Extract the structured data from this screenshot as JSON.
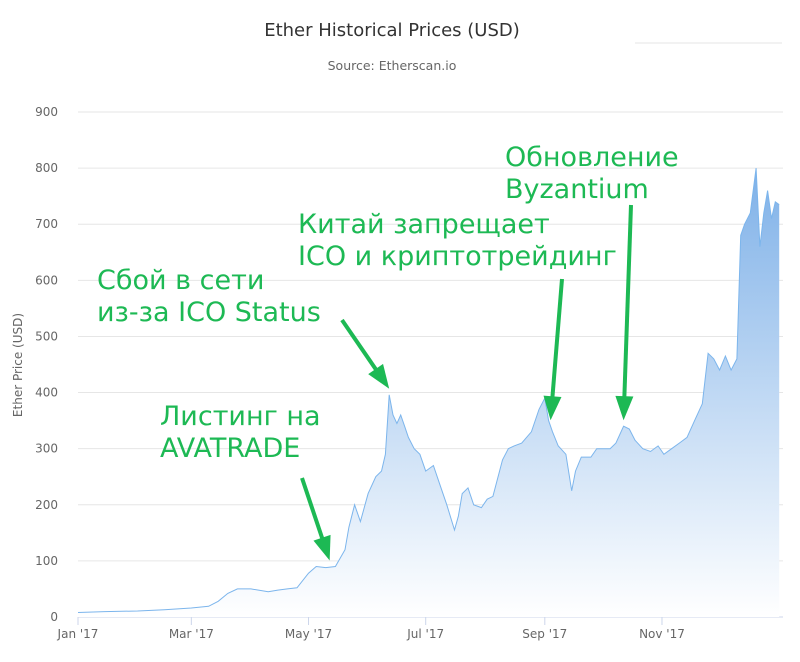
{
  "chart_data": {
    "type": "area",
    "title": "Ether Historical Prices (USD)",
    "subtitle": "Source: Etherscan.io",
    "xlabel": "",
    "ylabel": "Ether Price (USD)",
    "ylim": [
      0,
      900
    ],
    "yticks": [
      0,
      100,
      200,
      300,
      400,
      500,
      600,
      700,
      800,
      900
    ],
    "xticks": [
      {
        "label": "Jan '17",
        "date": "2017-01-01"
      },
      {
        "label": "Mar '17",
        "date": "2017-03-01"
      },
      {
        "label": "May '17",
        "date": "2017-05-01"
      },
      {
        "label": "Jul '17",
        "date": "2017-07-01"
      },
      {
        "label": "Sep '17",
        "date": "2017-09-01"
      },
      {
        "label": "Nov '17",
        "date": "2017-11-01"
      }
    ],
    "xrange": [
      "2017-01-01",
      "2018-01-03"
    ],
    "grid": true,
    "legend": "none",
    "colors": {
      "line": "#7cb5ec",
      "fill_top": "#7fb1e8",
      "fill_bottom": "#ffffff",
      "annotation": "#1db954"
    },
    "series": [
      {
        "values": [
          [
            "2017-01-01",
            8
          ],
          [
            "2017-01-15",
            9.6
          ],
          [
            "2017-02-01",
            10.7
          ],
          [
            "2017-02-15",
            12.8
          ],
          [
            "2017-03-01",
            16
          ],
          [
            "2017-03-10",
            19
          ],
          [
            "2017-03-15",
            28
          ],
          [
            "2017-03-20",
            42
          ],
          [
            "2017-03-25",
            50
          ],
          [
            "2017-04-01",
            50
          ],
          [
            "2017-04-10",
            45
          ],
          [
            "2017-04-15",
            48
          ],
          [
            "2017-04-20",
            50
          ],
          [
            "2017-04-25",
            52
          ],
          [
            "2017-05-01",
            78
          ],
          [
            "2017-05-05",
            90
          ],
          [
            "2017-05-10",
            88
          ],
          [
            "2017-05-15",
            90
          ],
          [
            "2017-05-20",
            120
          ],
          [
            "2017-05-22",
            160
          ],
          [
            "2017-05-25",
            200
          ],
          [
            "2017-05-28",
            170
          ],
          [
            "2017-06-01",
            220
          ],
          [
            "2017-06-05",
            250
          ],
          [
            "2017-06-08",
            260
          ],
          [
            "2017-06-10",
            290
          ],
          [
            "2017-06-12",
            396
          ],
          [
            "2017-06-14",
            360
          ],
          [
            "2017-06-16",
            345
          ],
          [
            "2017-06-18",
            360
          ],
          [
            "2017-06-20",
            340
          ],
          [
            "2017-06-22",
            320
          ],
          [
            "2017-06-25",
            300
          ],
          [
            "2017-06-28",
            290
          ],
          [
            "2017-07-01",
            260
          ],
          [
            "2017-07-05",
            270
          ],
          [
            "2017-07-08",
            240
          ],
          [
            "2017-07-12",
            200
          ],
          [
            "2017-07-16",
            155
          ],
          [
            "2017-07-18",
            180
          ],
          [
            "2017-07-20",
            220
          ],
          [
            "2017-07-23",
            230
          ],
          [
            "2017-07-26",
            200
          ],
          [
            "2017-07-30",
            195
          ],
          [
            "2017-08-02",
            210
          ],
          [
            "2017-08-05",
            215
          ],
          [
            "2017-08-10",
            280
          ],
          [
            "2017-08-13",
            300
          ],
          [
            "2017-08-16",
            305
          ],
          [
            "2017-08-20",
            310
          ],
          [
            "2017-08-25",
            330
          ],
          [
            "2017-08-29",
            370
          ],
          [
            "2017-09-01",
            390
          ],
          [
            "2017-09-03",
            350
          ],
          [
            "2017-09-05",
            330
          ],
          [
            "2017-09-08",
            305
          ],
          [
            "2017-09-12",
            290
          ],
          [
            "2017-09-15",
            225
          ],
          [
            "2017-09-17",
            260
          ],
          [
            "2017-09-20",
            285
          ],
          [
            "2017-09-25",
            285
          ],
          [
            "2017-09-28",
            300
          ],
          [
            "2017-10-01",
            300
          ],
          [
            "2017-10-05",
            300
          ],
          [
            "2017-10-08",
            310
          ],
          [
            "2017-10-12",
            340
          ],
          [
            "2017-10-15",
            335
          ],
          [
            "2017-10-18",
            315
          ],
          [
            "2017-10-22",
            300
          ],
          [
            "2017-10-26",
            295
          ],
          [
            "2017-10-30",
            305
          ],
          [
            "2017-11-02",
            290
          ],
          [
            "2017-11-06",
            300
          ],
          [
            "2017-11-10",
            310
          ],
          [
            "2017-11-14",
            320
          ],
          [
            "2017-11-18",
            350
          ],
          [
            "2017-11-22",
            380
          ],
          [
            "2017-11-25",
            470
          ],
          [
            "2017-11-28",
            460
          ],
          [
            "2017-12-01",
            440
          ],
          [
            "2017-12-04",
            465
          ],
          [
            "2017-12-07",
            440
          ],
          [
            "2017-12-10",
            460
          ],
          [
            "2017-12-12",
            680
          ],
          [
            "2017-12-14",
            700
          ],
          [
            "2017-12-17",
            720
          ],
          [
            "2017-12-20",
            800
          ],
          [
            "2017-12-22",
            660
          ],
          [
            "2017-12-24",
            720
          ],
          [
            "2017-12-26",
            760
          ],
          [
            "2017-12-28",
            710
          ],
          [
            "2017-12-30",
            740
          ],
          [
            "2018-01-01",
            735
          ]
        ]
      }
    ],
    "annotations": [
      {
        "lines": [
          "Листинг на",
          "AVATRADE"
        ],
        "target": [
          "2017-05-12",
          90
        ]
      },
      {
        "lines": [
          "Сбой в сети",
          "из-за ICO Status"
        ],
        "target": [
          "2017-06-12",
          396
        ]
      },
      {
        "lines": [
          "Китай запрещает",
          "ICO и криптотрейдинг"
        ],
        "target": [
          "2017-09-04",
          340
        ]
      },
      {
        "lines": [
          "Обновление",
          "Byzantium"
        ],
        "target": [
          "2017-10-12",
          340
        ]
      }
    ]
  }
}
